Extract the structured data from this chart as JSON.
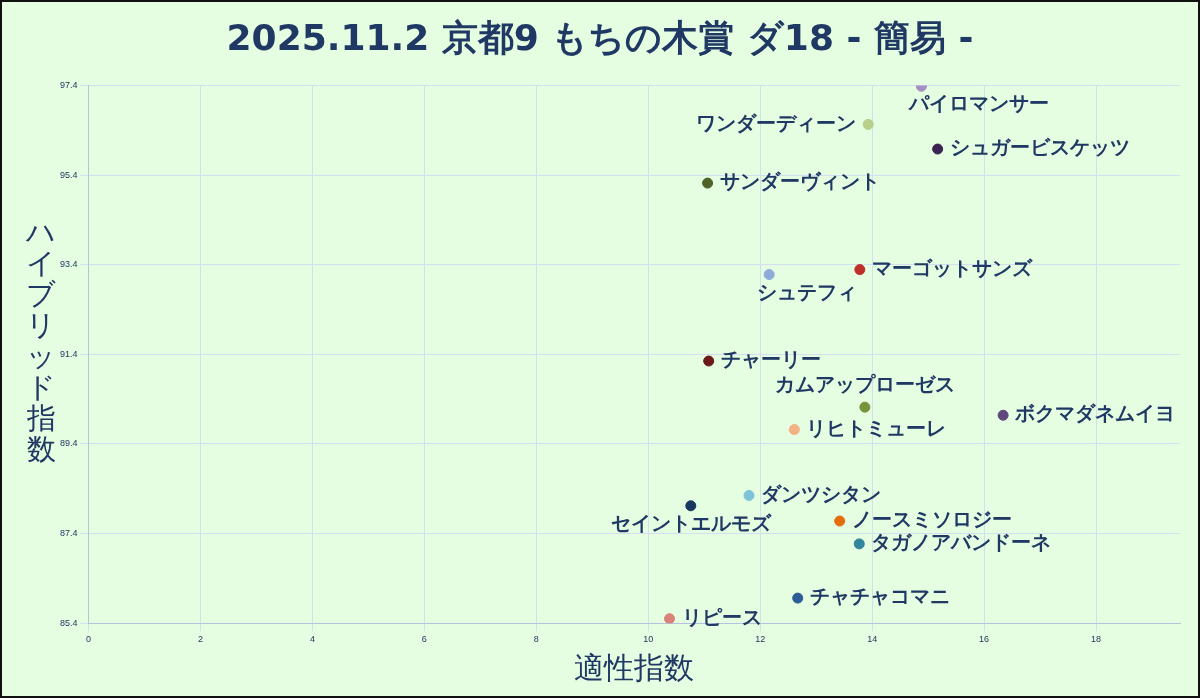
{
  "chart_data": {
    "type": "scatter",
    "title": "2025.11.2 京都9 もちの木賞 ダ18 - 簡易 -",
    "xlabel": "適性指数",
    "ylabel": "ハイブリッド指数",
    "xlim": [
      0,
      19.5
    ],
    "xticks": [
      0,
      2,
      4,
      6,
      8,
      10,
      12,
      14,
      16,
      18
    ],
    "ylim": [
      85.4,
      97.4
    ],
    "yticks": [
      85.4,
      87.4,
      89.4,
      91.4,
      93.4,
      95.4,
      97.4
    ],
    "grid": true,
    "legend": false,
    "marker": "circle",
    "series": [
      {
        "name": "パイロマンサー",
        "color": "#a58fc4",
        "x": [
          14.88
        ],
        "values": [
          97.38
        ]
      },
      {
        "name": "ワンダーディーン",
        "color": "#b8cf8a",
        "x": [
          13.93
        ],
        "values": [
          96.53
        ]
      },
      {
        "name": "シュガービスケッツ",
        "color": "#3a2350",
        "x": [
          15.17
        ],
        "values": [
          95.98
        ]
      },
      {
        "name": "サンダーヴィント",
        "color": "#4f6228",
        "x": [
          11.06
        ],
        "values": [
          95.22
        ]
      },
      {
        "name": "マーゴットサンズ",
        "color": "#c0302b",
        "x": [
          13.78
        ],
        "values": [
          93.29
        ]
      },
      {
        "name": "シュテフィ",
        "color": "#8eaadb",
        "x": [
          12.16
        ],
        "values": [
          93.18
        ]
      },
      {
        "name": "チャーリー",
        "color": "#6b1a1a",
        "x": [
          11.08
        ],
        "values": [
          91.25
        ]
      },
      {
        "name": "カムアップローゼス",
        "color": "#77933c",
        "x": [
          13.87
        ],
        "values": [
          90.22
        ]
      },
      {
        "name": "ボクマダネムイヨ",
        "color": "#60497a",
        "x": [
          16.34
        ],
        "values": [
          90.04
        ]
      },
      {
        "name": "リヒトミューレ",
        "color": "#f4b183",
        "x": [
          12.61
        ],
        "values": [
          89.72
        ]
      },
      {
        "name": "ダンツシタン",
        "color": "#7fc3d8",
        "x": [
          11.8
        ],
        "values": [
          88.25
        ]
      },
      {
        "name": "セイントエルモズ",
        "color": "#17375e",
        "x": [
          10.76
        ],
        "values": [
          88.02
        ]
      },
      {
        "name": "ノースミソロジー",
        "color": "#e46c0a",
        "x": [
          13.42
        ],
        "values": [
          87.68
        ]
      },
      {
        "name": "タガノアバンドーネ",
        "color": "#31859c",
        "x": [
          13.77
        ],
        "values": [
          87.17
        ]
      },
      {
        "name": "チャチャコマニ",
        "color": "#2e5c94",
        "x": [
          12.67
        ],
        "values": [
          85.96
        ]
      },
      {
        "name": "リピース",
        "color": "#d9827a",
        "x": [
          10.38
        ],
        "values": [
          85.5
        ]
      }
    ]
  }
}
